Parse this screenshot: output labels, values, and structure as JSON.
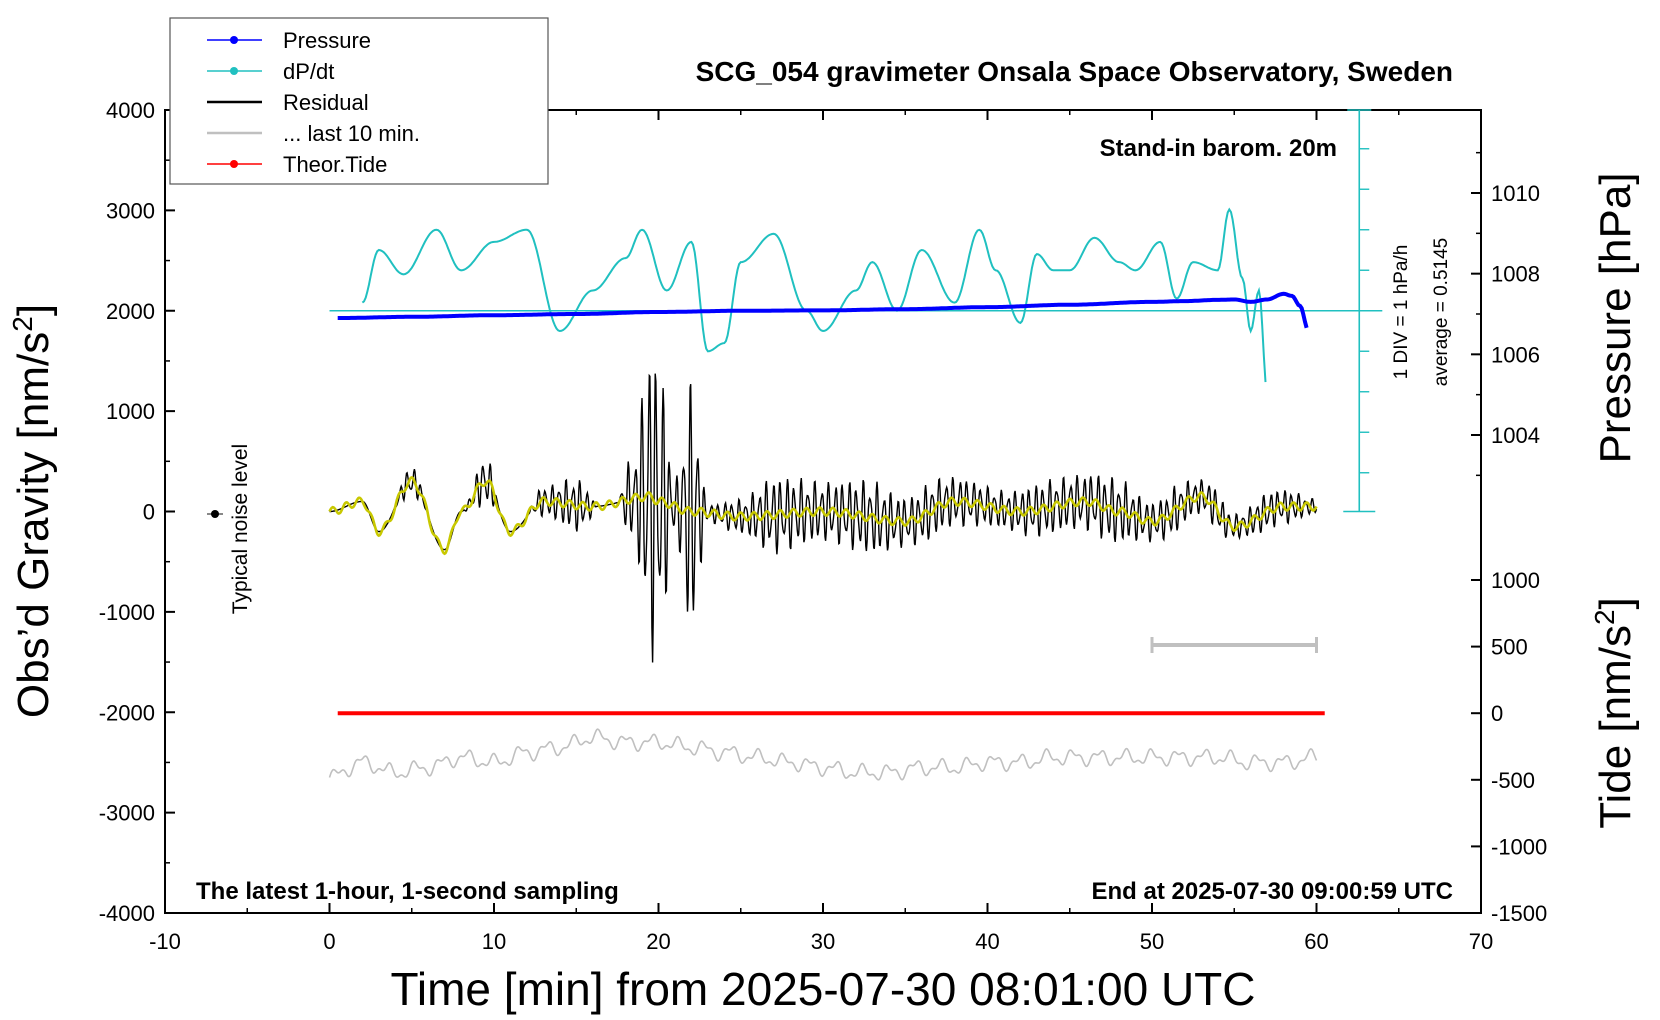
{
  "chart_data": {
    "type": "line",
    "title": "SCG_054 gravimeter Onsala Space Observatory, Sweden",
    "xlabel": "Time [min] from 2025-07-30 08:01:00 UTC",
    "ylabel": "Obs’d Gravity [nm/s",
    "ylabel_sup": "2",
    "ylabel_close": "]",
    "y2label": "Pressure [hPa]",
    "y3label": "Tide [nm/s",
    "y3label_sup": "2",
    "y3label_close": "]",
    "xlim": [
      -10,
      70
    ],
    "ylim": [
      -4000,
      4000
    ],
    "x_ticks": [
      "-10",
      "0",
      "10",
      "20",
      "30",
      "40",
      "50",
      "60",
      "70"
    ],
    "y_ticks": [
      "-4000",
      "-3000",
      "-2000",
      "-1000",
      "0",
      "1000",
      "2000",
      "3000",
      "4000"
    ],
    "pressure_ticks": [
      "1010",
      "1008",
      "1006",
      "1004"
    ],
    "pressure_tick_values": [
      1010,
      1008,
      1006,
      1004
    ],
    "tide_ticks": [
      "1000",
      "500",
      "0",
      "-500",
      "-1000",
      "-1500"
    ],
    "tide_tick_values": [
      1000,
      500,
      0,
      -500,
      -1000,
      -1500
    ],
    "annotations": {
      "stand_in": "Stand-in barom. 20m",
      "latest": "The latest 1-hour, 1-second sampling",
      "end_at": "End at 2025-07-30 09:00:59 UTC",
      "noise": "Typical noise level",
      "div": "1 DIV = 1 hPa/h",
      "average": "average = 0.5145"
    },
    "legend": [
      {
        "label": "Pressure",
        "color": "#0000ff",
        "marker": true
      },
      {
        "label": "dP/dt",
        "color": "#20c0c0",
        "marker": true
      },
      {
        "label": "Residual",
        "color": "#000000",
        "marker": false
      },
      {
        "label": "... last 10 min.",
        "color": "#c0c0c0",
        "marker": false
      },
      {
        "label": "Theor.Tide",
        "color": "#ff0000",
        "marker": true
      }
    ],
    "series": [
      {
        "name": "Pressure",
        "color": "#0000ff",
        "unit": "hPa",
        "x": [
          0.5,
          5,
          10,
          15,
          20,
          25,
          30,
          35,
          40,
          45,
          50,
          52,
          54,
          55,
          56,
          57,
          58,
          58.5,
          59,
          59.5
        ],
        "values": [
          1006.9,
          1006.93,
          1006.97,
          1007.0,
          1007.05,
          1007.08,
          1007.09,
          1007.12,
          1007.17,
          1007.23,
          1007.3,
          1007.32,
          1007.35,
          1007.36,
          1007.3,
          1007.36,
          1007.5,
          1007.45,
          1007.2,
          1006.6
        ]
      },
      {
        "name": "dP/dt",
        "color": "#20c0c0",
        "unit": "DIV (1 hPa/h), zero at gravity 2000",
        "x": [
          2,
          3,
          4.5,
          6.5,
          8,
          10,
          12,
          14,
          16,
          18,
          19,
          20.5,
          22,
          23,
          24,
          25,
          27,
          29,
          30,
          32,
          33,
          34.5,
          36,
          38,
          39.5,
          40.5,
          42,
          43,
          44,
          45,
          46.5,
          48,
          49,
          50.5,
          51.5,
          52.5,
          54,
          54.7,
          55.5,
          56,
          56.5,
          57
        ],
        "values": [
          0.2,
          1.5,
          0.9,
          2.0,
          1.0,
          1.7,
          2.0,
          -0.5,
          0.5,
          1.3,
          2.0,
          0.5,
          1.7,
          -1.0,
          -0.8,
          1.2,
          1.9,
          0.0,
          -0.5,
          0.5,
          1.2,
          0.0,
          1.5,
          0.2,
          2.0,
          1.0,
          -0.3,
          1.4,
          1.0,
          1.0,
          1.8,
          1.2,
          1.0,
          1.7,
          0.3,
          1.2,
          1.0,
          2.5,
          0.8,
          -0.5,
          0.5,
          -2.0
        ]
      },
      {
        "name": "Residual",
        "color": "#000000",
        "unit": "nm/s2",
        "x": [
          0,
          2,
          3,
          5,
          7,
          8,
          9.5,
          11,
          13,
          15,
          17,
          18.5,
          19.5,
          20,
          21,
          22,
          23,
          25,
          27,
          30,
          33,
          35,
          38,
          41,
          44,
          47,
          50,
          53,
          55,
          58,
          60
        ],
        "values": [
          0,
          50,
          -200,
          300,
          -350,
          0,
          400,
          -300,
          200,
          300,
          -100,
          500,
          1700,
          1500,
          300,
          1300,
          100,
          200,
          400,
          300,
          400,
          300,
          300,
          200,
          300,
          350,
          250,
          250,
          200,
          200,
          100
        ]
      },
      {
        "name": "Residual (smoothed)",
        "color": "#c8c800",
        "unit": "nm/s2",
        "x": [
          0,
          2,
          3,
          5,
          7,
          8,
          9.5,
          11,
          13,
          16,
          19.5,
          20,
          22,
          25,
          30,
          35,
          38,
          42,
          46,
          48,
          50,
          53,
          55,
          58,
          60
        ],
        "values": [
          0,
          100,
          -200,
          300,
          -380,
          0,
          300,
          -200,
          100,
          50,
          150,
          100,
          0,
          -50,
          0,
          -100,
          100,
          0,
          100,
          0,
          -100,
          150,
          -150,
          50,
          50
        ]
      },
      {
        "name": "... last 10 min.",
        "color": "#c0c0c0",
        "unit": "nm/s2",
        "x": [
          50,
          60
        ],
        "values": [
          -1330,
          -1330
        ]
      },
      {
        "name": "Theor.Tide",
        "color": "#ff0000",
        "unit": "nm/s2",
        "x": [
          0.5,
          60.5
        ],
        "values": [
          0,
          0
        ]
      },
      {
        "name": "Residual high-pass",
        "color": "#c0c0c0",
        "unit": "nm/s2",
        "x": [
          0,
          2,
          4,
          6,
          8,
          10,
          12,
          14,
          16,
          18,
          20,
          22,
          24,
          26,
          28,
          30,
          32,
          34,
          36,
          38,
          40,
          42,
          44,
          46,
          48,
          50,
          52,
          54,
          56,
          58,
          60
        ],
        "values": [
          -2650,
          -2500,
          -2600,
          -2550,
          -2450,
          -2500,
          -2400,
          -2350,
          -2250,
          -2300,
          -2300,
          -2350,
          -2400,
          -2450,
          -2500,
          -2550,
          -2600,
          -2600,
          -2550,
          -2550,
          -2500,
          -2500,
          -2450,
          -2450,
          -2450,
          -2450,
          -2450,
          -2450,
          -2500,
          -2500,
          -2450
        ]
      }
    ],
    "pressure_range": [
      1002,
      1012
    ],
    "tide_range": [
      -1500,
      1500
    ],
    "colors": {
      "pressure": "#0000ff",
      "dpdt": "#20c0c0",
      "residual": "#000000",
      "smoothed": "#c8c800",
      "last10": "#c0c0c0",
      "tide": "#ff0000",
      "highpass": "#c0c0c0"
    }
  }
}
